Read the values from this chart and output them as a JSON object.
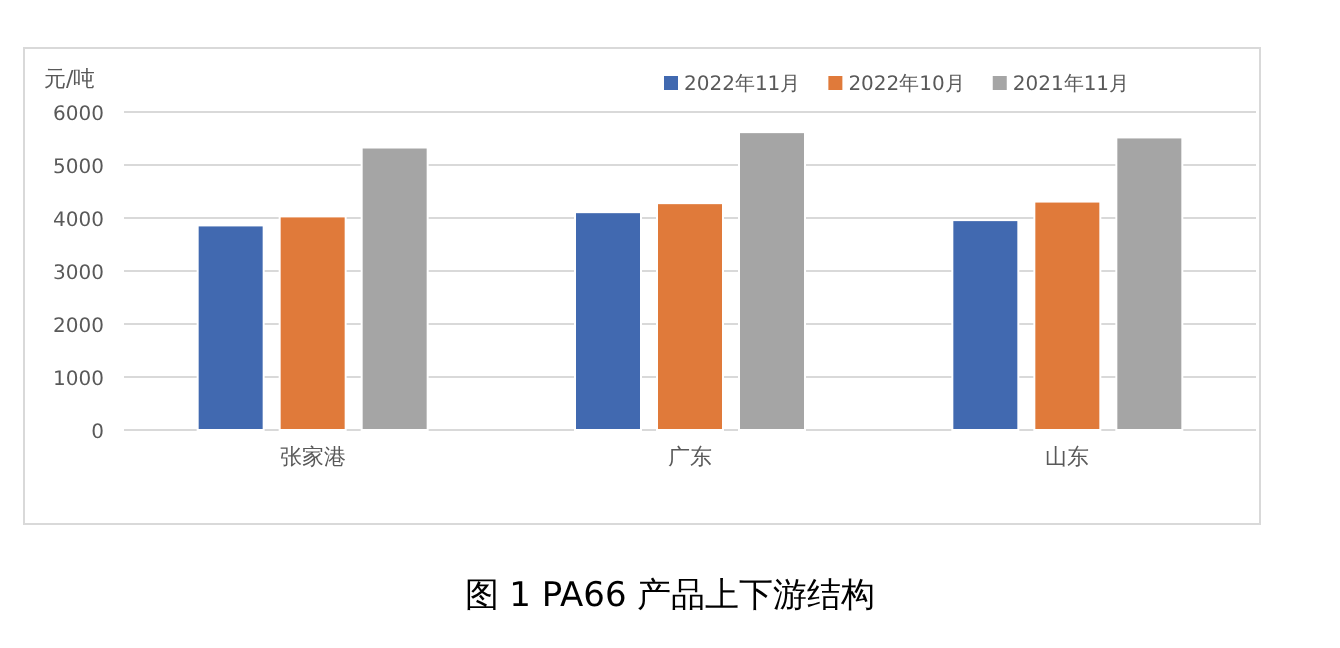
{
  "chart_data": {
    "type": "bar",
    "ylabel": "元/吨",
    "categories": [
      "张家港",
      "广东",
      "山东"
    ],
    "series": [
      {
        "name": "2022年11月",
        "color": "#4169b0",
        "values": [
          3860,
          4110,
          3960
        ]
      },
      {
        "name": "2022年10月",
        "color": "#e07a3a",
        "values": [
          4030,
          4280,
          4310
        ]
      },
      {
        "name": "2021年11月",
        "color": "#a5a5a5",
        "values": [
          5330,
          5620,
          5520
        ]
      }
    ],
    "ylim": [
      0,
      6000
    ],
    "yticks": [
      0,
      1000,
      2000,
      3000,
      4000,
      5000,
      6000
    ],
    "grid": "y",
    "legend": "top right",
    "annotations": [
      "图 1  PA66 产品上下游结构"
    ]
  }
}
